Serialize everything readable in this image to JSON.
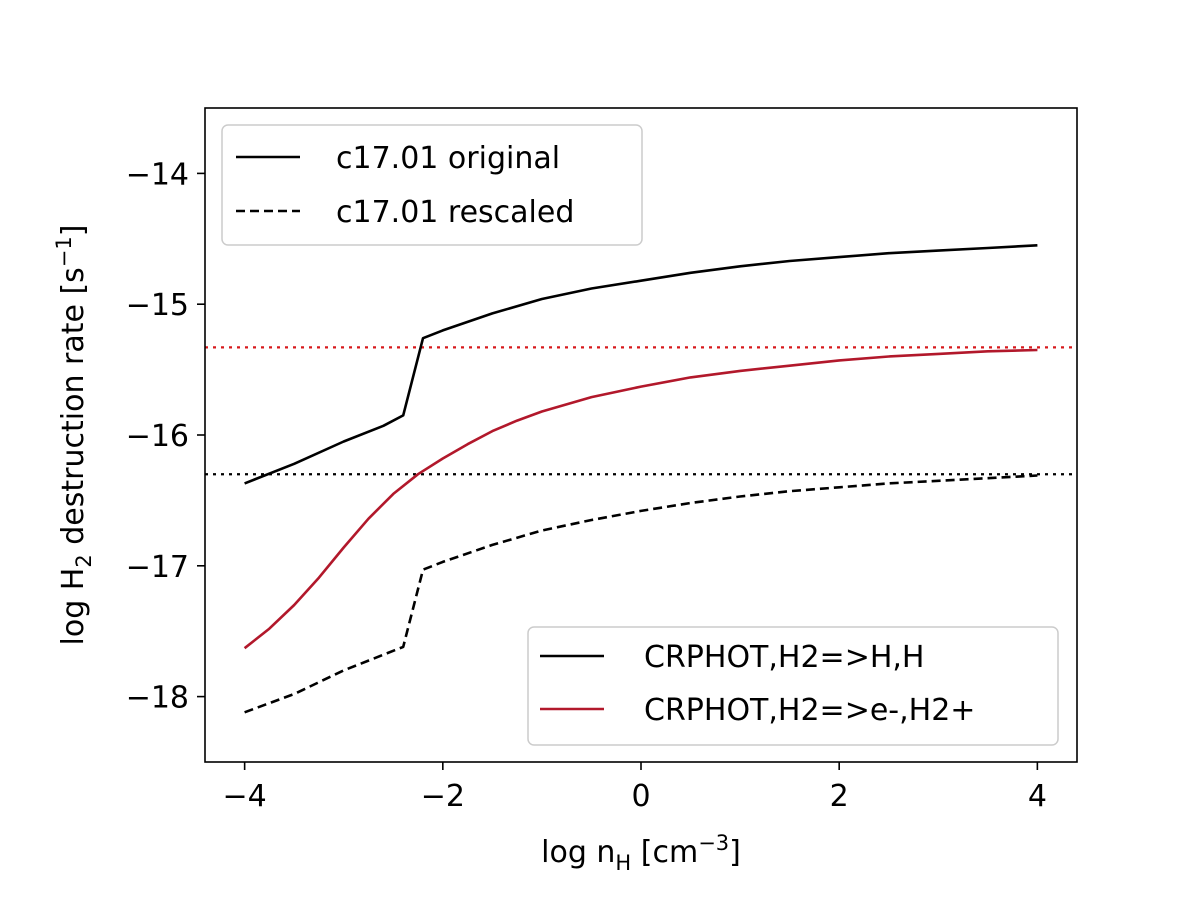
{
  "chart_data": {
    "type": "line",
    "xlabel": "log n_H [cm^-3]",
    "ylabel": "log H_2 destruction rate [s^-1]",
    "xlim": [
      -4.4,
      4.4
    ],
    "ylim": [
      -18.5,
      -13.5
    ],
    "x_ticks": [
      -4,
      -2,
      0,
      2,
      4
    ],
    "x_tick_labels": [
      "−4",
      "−2",
      "0",
      "2",
      "4"
    ],
    "y_ticks": [
      -18,
      -17,
      -16,
      -15,
      -14
    ],
    "y_tick_labels": [
      "−18",
      "−17",
      "−16",
      "−15",
      "−14"
    ],
    "grid": false,
    "colors": {
      "black": "#000000",
      "crimson": "#b2182b",
      "dotted_red": "#d7191c"
    },
    "series": [
      {
        "name": "CRPHOT,H2=>H,H / c17.01 original",
        "color": "#000000",
        "style": "solid",
        "x": [
          -4.0,
          -3.5,
          -3.0,
          -2.6,
          -2.4,
          -2.2,
          -2.0,
          -1.5,
          -1.0,
          -0.5,
          0.0,
          0.5,
          1.0,
          1.5,
          2.0,
          2.5,
          3.0,
          3.5,
          4.0
        ],
        "y": [
          -16.37,
          -16.22,
          -16.05,
          -15.93,
          -15.85,
          -15.26,
          -15.2,
          -15.07,
          -14.96,
          -14.88,
          -14.82,
          -14.76,
          -14.71,
          -14.67,
          -14.64,
          -14.61,
          -14.59,
          -14.57,
          -14.55
        ]
      },
      {
        "name": "c17.01 rescaled",
        "color": "#000000",
        "style": "dashed",
        "x": [
          -4.0,
          -3.5,
          -3.0,
          -2.6,
          -2.4,
          -2.2,
          -2.0,
          -1.5,
          -1.0,
          -0.5,
          0.0,
          0.5,
          1.0,
          1.5,
          2.0,
          2.5,
          3.0,
          3.5,
          4.0
        ],
        "y": [
          -18.12,
          -17.98,
          -17.8,
          -17.68,
          -17.62,
          -17.03,
          -16.97,
          -16.84,
          -16.73,
          -16.65,
          -16.58,
          -16.52,
          -16.47,
          -16.43,
          -16.4,
          -16.37,
          -16.35,
          -16.33,
          -16.31
        ]
      },
      {
        "name": "CRPHOT,H2=>e-,H2+",
        "color": "#b2182b",
        "style": "solid",
        "x": [
          -4.0,
          -3.75,
          -3.5,
          -3.25,
          -3.0,
          -2.75,
          -2.5,
          -2.25,
          -2.0,
          -1.75,
          -1.5,
          -1.25,
          -1.0,
          -0.5,
          0.0,
          0.5,
          1.0,
          1.5,
          2.0,
          2.5,
          3.0,
          3.5,
          4.0
        ],
        "y": [
          -17.63,
          -17.48,
          -17.3,
          -17.09,
          -16.86,
          -16.64,
          -16.45,
          -16.3,
          -16.18,
          -16.07,
          -15.97,
          -15.89,
          -15.82,
          -15.71,
          -15.63,
          -15.56,
          -15.51,
          -15.47,
          -15.43,
          -15.4,
          -15.38,
          -15.36,
          -15.35
        ]
      }
    ],
    "reference_lines": [
      {
        "orientation": "horizontal",
        "y": -15.33,
        "color": "#d7191c",
        "style": "dotted"
      },
      {
        "orientation": "horizontal",
        "y": -16.3,
        "color": "#000000",
        "style": "dotted"
      }
    ],
    "legends": [
      {
        "placement": "upper-left",
        "entries": [
          {
            "label": "c17.01 original",
            "color": "#000000",
            "style": "solid"
          },
          {
            "label": "c17.01 rescaled",
            "color": "#000000",
            "style": "dashed"
          }
        ]
      },
      {
        "placement": "lower-right",
        "entries": [
          {
            "label": "CRPHOT,H2=>H,H",
            "color": "#000000",
            "style": "solid"
          },
          {
            "label": "CRPHOT,H2=>e-,H2+",
            "color": "#b2182b",
            "style": "solid"
          }
        ]
      }
    ]
  }
}
